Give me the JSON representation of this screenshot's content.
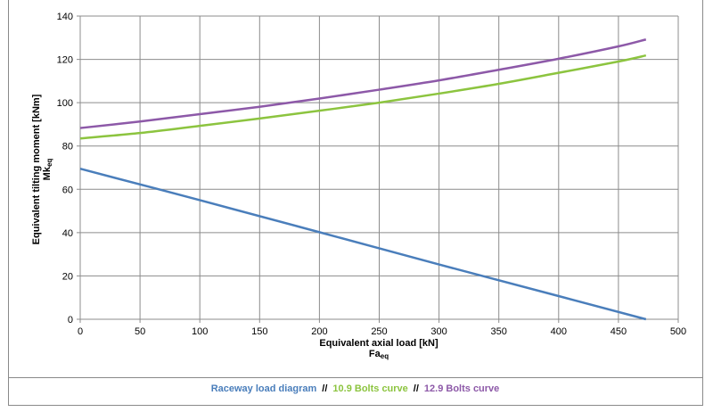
{
  "chart_data": {
    "type": "line",
    "x_axis": {
      "label": "Equivalent axial load [kN]",
      "sublabel_main": "Fa",
      "sublabel_sub": "eq",
      "range": [
        0,
        500
      ],
      "ticks": [
        0,
        50,
        100,
        150,
        200,
        250,
        300,
        350,
        400,
        450,
        500
      ]
    },
    "y_axis": {
      "label": "Equivalent tilting moment [kNm]",
      "sublabel_main": "Mk",
      "sublabel_sub": "eq",
      "range": [
        0,
        140
      ],
      "ticks": [
        0,
        20,
        40,
        60,
        80,
        100,
        120,
        140
      ]
    },
    "grid": true,
    "legend_position": "bottom",
    "series": [
      {
        "name": "Raceway load diagram",
        "color": "#4a7ebb",
        "points": [
          [
            0,
            69.5
          ],
          [
            100,
            55
          ],
          [
            200,
            40.2
          ],
          [
            300,
            25.3
          ],
          [
            400,
            10.7
          ],
          [
            473,
            0
          ]
        ]
      },
      {
        "name": "10.9 Bolts curve",
        "color": "#8cc43f",
        "points": [
          [
            0,
            83.5
          ],
          [
            50,
            86
          ],
          [
            100,
            89.3
          ],
          [
            150,
            92.7
          ],
          [
            200,
            96.3
          ],
          [
            250,
            100
          ],
          [
            300,
            104.2
          ],
          [
            350,
            108.7
          ],
          [
            400,
            113.8
          ],
          [
            450,
            119
          ],
          [
            473,
            121.8
          ]
        ]
      },
      {
        "name": "12.9 Bolts curve",
        "color": "#8d59a8",
        "points": [
          [
            0,
            88.3
          ],
          [
            50,
            91.3
          ],
          [
            100,
            94.7
          ],
          [
            150,
            98.1
          ],
          [
            200,
            101.9
          ],
          [
            250,
            106
          ],
          [
            300,
            110.3
          ],
          [
            350,
            115.2
          ],
          [
            400,
            120.3
          ],
          [
            450,
            126
          ],
          [
            473,
            129.2
          ]
        ]
      }
    ],
    "legend_separator": "//"
  }
}
